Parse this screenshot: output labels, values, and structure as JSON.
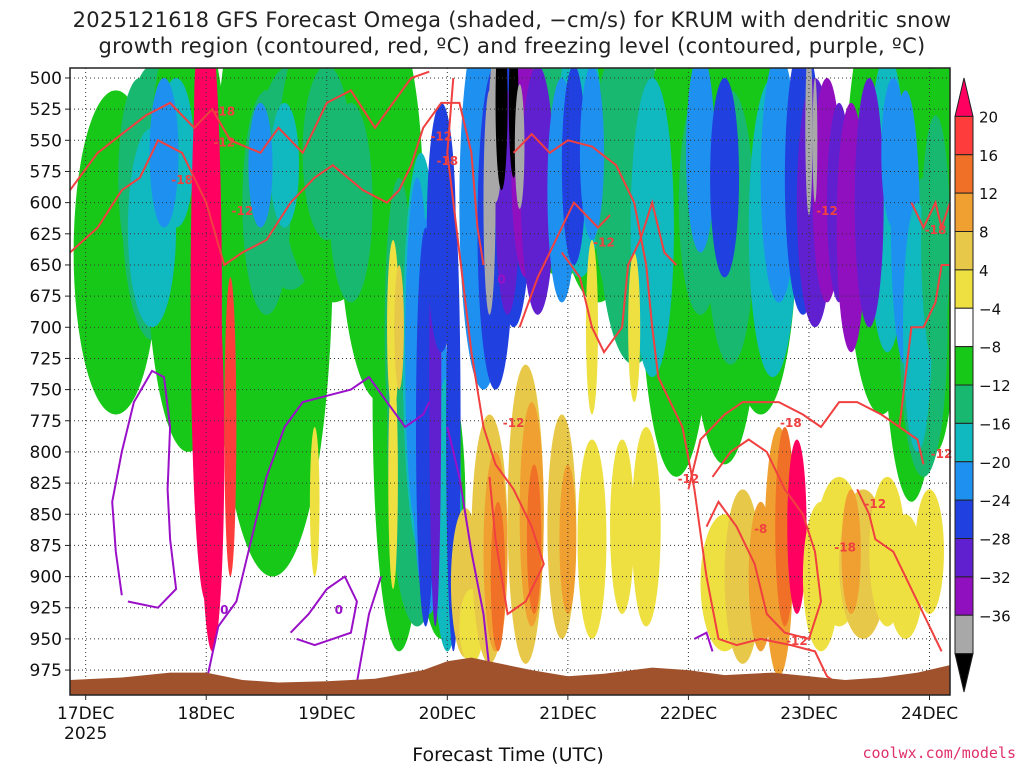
{
  "title_line1": "2025121618 GFS Forecast Omega (shaded, −cm/s) for KRUM with dendritic snow",
  "title_line2": "growth region (contoured, red, ºC) and freezing level (contoured, purple, ºC)",
  "credit": "coolwx.com/models",
  "chart_data": {
    "type": "heatmap",
    "title": "2025121618 GFS Forecast Omega (shaded, −cm/s) for KRUM with dendritic snow growth region (contoured, red, ºC) and freezing level (contoured, purple, ºC)",
    "xlabel": "Forecast Time (UTC)",
    "ylabel": "",
    "x_ticks": [
      "17DEC\n2025",
      "18DEC",
      "19DEC",
      "20DEC",
      "21DEC",
      "22DEC",
      "23DEC",
      "24DEC"
    ],
    "x_tick_days": [
      0,
      1,
      2,
      3,
      4,
      5,
      6,
      7
    ],
    "x_range_days": [
      -0.13,
      7.17
    ],
    "y_ticks": [
      500,
      525,
      550,
      575,
      600,
      625,
      650,
      675,
      700,
      725,
      750,
      775,
      800,
      825,
      850,
      875,
      900,
      925,
      950,
      975
    ],
    "y_range_hpa": [
      492,
      995
    ],
    "grid": true,
    "colorbar": {
      "labels": [
        "20",
        "16",
        "12",
        "8",
        "4",
        "−4",
        "−8",
        "−12",
        "−16",
        "−20",
        "−24",
        "−28",
        "−32",
        "−36"
      ],
      "colors": [
        "#ff0060",
        "#ff3c3c",
        "#f07028",
        "#f0a030",
        "#e8c848",
        "#eee040",
        "#ffffff",
        "#18c818",
        "#18b870",
        "#10b8c0",
        "#1e90f0",
        "#2040e0",
        "#6020d0",
        "#9010c0",
        "#a8a8a8",
        "#000000"
      ]
    },
    "series": [
      {
        "name": "Omega",
        "values": [
          {
            "t": 0.25,
            "p": 600,
            "omega": -9
          },
          {
            "t": 0.75,
            "p": 560,
            "omega": -14
          },
          {
            "t": 1.0,
            "p": 700,
            "omega": 22
          },
          {
            "t": 1.5,
            "p": 600,
            "omega": -10
          },
          {
            "t": 2.6,
            "p": 700,
            "omega": -12
          },
          {
            "t": 2.95,
            "p": 800,
            "omega": -30
          },
          {
            "t": 3.4,
            "p": 560,
            "omega": -38
          },
          {
            "t": 3.6,
            "p": 560,
            "omega": -28
          },
          {
            "t": 3.4,
            "p": 880,
            "omega": 10
          },
          {
            "t": 5.6,
            "p": 840,
            "omega": 18
          },
          {
            "t": 6.1,
            "p": 600,
            "omega": -26
          },
          {
            "t": 6.3,
            "p": 600,
            "omega": -30
          },
          {
            "t": 6.6,
            "p": 870,
            "omega": 6
          }
        ]
      },
      {
        "name": "dendritic snow growth region",
        "values": [
          -18,
          -12
        ]
      },
      {
        "name": "freezing level",
        "values": [
          0
        ]
      }
    ],
    "annotations": [
      "-18",
      "-12",
      "-18",
      "-12",
      "-12",
      "-18",
      "-12",
      "-12",
      "-12",
      "-8",
      "-12",
      "-18",
      "-12",
      "-18",
      "-18",
      "-12",
      "-12",
      "0",
      "0",
      "0"
    ],
    "terrain_color": "#a0522d",
    "omega_color": "#ff0060",
    "dgz_color": "#f04040",
    "freezing_color": "#9a10c8"
  }
}
